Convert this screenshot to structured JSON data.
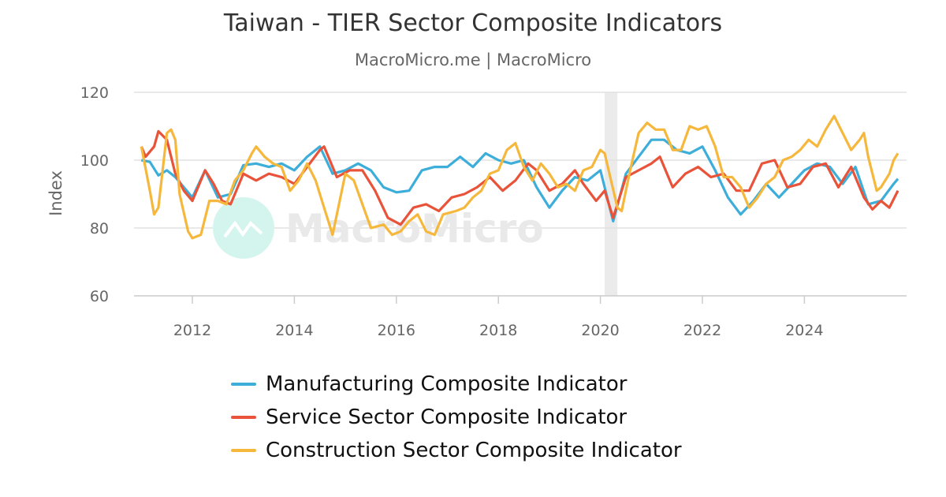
{
  "chart_data": {
    "type": "line",
    "title": "Taiwan - TIER Sector Composite Indicators",
    "subtitle": "MacroMicro.me | MacroMicro",
    "ylabel": "Index",
    "xlabel": "",
    "ylim": [
      60,
      120
    ],
    "yticks": [
      "60",
      "80",
      "100",
      "120"
    ],
    "xticks": [
      "2012",
      "2014",
      "2016",
      "2018",
      "2020",
      "2022",
      "2024"
    ],
    "grid": true,
    "legend": "bottom",
    "shaded_period": [
      "2020-02",
      "2020-05"
    ],
    "watermark": "MacroMicro",
    "series": [
      {
        "name": "Manufacturing Composite Indicator",
        "color": "#3caed9",
        "points": [
          [
            "2011-01",
            100
          ],
          [
            "2011-03",
            99.5
          ],
          [
            "2011-05",
            95.5
          ],
          [
            "2011-07",
            97
          ],
          [
            "2011-09",
            95
          ],
          [
            "2011-11",
            92
          ],
          [
            "2012-01",
            89
          ],
          [
            "2012-04",
            97
          ],
          [
            "2012-07",
            89
          ],
          [
            "2012-10",
            90
          ],
          [
            "2013-01",
            98.5
          ],
          [
            "2013-04",
            99
          ],
          [
            "2013-07",
            98
          ],
          [
            "2013-10",
            99
          ],
          [
            "2014-01",
            97
          ],
          [
            "2014-04",
            101
          ],
          [
            "2014-07",
            104
          ],
          [
            "2014-10",
            96
          ],
          [
            "2015-01",
            97
          ],
          [
            "2015-04",
            99
          ],
          [
            "2015-07",
            97
          ],
          [
            "2015-10",
            92
          ],
          [
            "2016-01",
            90.5
          ],
          [
            "2016-04",
            91
          ],
          [
            "2016-07",
            97
          ],
          [
            "2016-10",
            98
          ],
          [
            "2017-01",
            98
          ],
          [
            "2017-04",
            101
          ],
          [
            "2017-07",
            98
          ],
          [
            "2017-10",
            102
          ],
          [
            "2018-01",
            100
          ],
          [
            "2018-04",
            99
          ],
          [
            "2018-07",
            100
          ],
          [
            "2018-10",
            92
          ],
          [
            "2019-01",
            86
          ],
          [
            "2019-04",
            91
          ],
          [
            "2019-07",
            95
          ],
          [
            "2019-10",
            94
          ],
          [
            "2020-01",
            97
          ],
          [
            "2020-04",
            82
          ],
          [
            "2020-07",
            96
          ],
          [
            "2020-10",
            101
          ],
          [
            "2021-01",
            106
          ],
          [
            "2021-04",
            106
          ],
          [
            "2021-07",
            103
          ],
          [
            "2021-10",
            102
          ],
          [
            "2022-01",
            104
          ],
          [
            "2022-04",
            97
          ],
          [
            "2022-07",
            89
          ],
          [
            "2022-10",
            84
          ],
          [
            "2023-01",
            88
          ],
          [
            "2023-04",
            93
          ],
          [
            "2023-07",
            89
          ],
          [
            "2023-10",
            93
          ],
          [
            "2024-01",
            97
          ],
          [
            "2024-04",
            99
          ],
          [
            "2024-07",
            98
          ],
          [
            "2024-10",
            93
          ],
          [
            "2025-01",
            98
          ],
          [
            "2025-04",
            87
          ],
          [
            "2025-07",
            88
          ],
          [
            "2025-10",
            93
          ],
          [
            "2025-11",
            94.5
          ]
        ]
      },
      {
        "name": "Service Sector Composite Indicator",
        "color": "#e8533a",
        "points": [
          [
            "2011-01",
            104
          ],
          [
            "2011-02",
            101
          ],
          [
            "2011-04",
            104
          ],
          [
            "2011-05",
            108.5
          ],
          [
            "2011-07",
            106
          ],
          [
            "2011-09",
            96
          ],
          [
            "2011-11",
            91
          ],
          [
            "2012-01",
            88
          ],
          [
            "2012-04",
            97
          ],
          [
            "2012-06",
            93
          ],
          [
            "2012-08",
            88
          ],
          [
            "2012-10",
            87
          ],
          [
            "2013-01",
            96
          ],
          [
            "2013-04",
            94
          ],
          [
            "2013-07",
            96
          ],
          [
            "2013-10",
            95
          ],
          [
            "2014-01",
            93
          ],
          [
            "2014-04",
            98
          ],
          [
            "2014-07",
            103
          ],
          [
            "2014-08",
            104
          ],
          [
            "2014-11",
            95
          ],
          [
            "2015-02",
            97
          ],
          [
            "2015-05",
            97
          ],
          [
            "2015-08",
            91
          ],
          [
            "2015-11",
            83
          ],
          [
            "2016-02",
            81
          ],
          [
            "2016-05",
            86
          ],
          [
            "2016-08",
            87
          ],
          [
            "2016-11",
            85
          ],
          [
            "2017-02",
            89
          ],
          [
            "2017-05",
            90
          ],
          [
            "2017-08",
            92
          ],
          [
            "2017-11",
            95
          ],
          [
            "2018-02",
            91
          ],
          [
            "2018-05",
            94
          ],
          [
            "2018-08",
            99
          ],
          [
            "2018-10",
            97
          ],
          [
            "2019-01",
            91
          ],
          [
            "2019-04",
            93
          ],
          [
            "2019-07",
            97
          ],
          [
            "2019-09",
            93
          ],
          [
            "2019-12",
            88
          ],
          [
            "2020-02",
            91
          ],
          [
            "2020-04",
            83
          ],
          [
            "2020-07",
            95
          ],
          [
            "2020-10",
            97
          ],
          [
            "2021-01",
            99
          ],
          [
            "2021-03",
            101
          ],
          [
            "2021-06",
            92
          ],
          [
            "2021-09",
            96
          ],
          [
            "2021-12",
            98
          ],
          [
            "2022-03",
            95
          ],
          [
            "2022-06",
            96
          ],
          [
            "2022-09",
            91
          ],
          [
            "2022-12",
            91
          ],
          [
            "2023-03",
            99
          ],
          [
            "2023-06",
            100
          ],
          [
            "2023-09",
            92
          ],
          [
            "2023-12",
            93
          ],
          [
            "2024-03",
            98
          ],
          [
            "2024-06",
            99
          ],
          [
            "2024-09",
            92
          ],
          [
            "2024-12",
            98
          ],
          [
            "2025-03",
            89
          ],
          [
            "2025-05",
            85.5
          ],
          [
            "2025-07",
            88
          ],
          [
            "2025-09",
            86
          ],
          [
            "2025-11",
            91
          ]
        ]
      },
      {
        "name": "Construction Sector Composite Indicator",
        "color": "#f5b83d",
        "points": [
          [
            "2011-01",
            104
          ],
          [
            "2011-03",
            91
          ],
          [
            "2011-04",
            84
          ],
          [
            "2011-05",
            86
          ],
          [
            "2011-07",
            108
          ],
          [
            "2011-08",
            109
          ],
          [
            "2011-09",
            106
          ],
          [
            "2011-10",
            90
          ],
          [
            "2011-12",
            79
          ],
          [
            "2012-01",
            77
          ],
          [
            "2012-03",
            78
          ],
          [
            "2012-05",
            88
          ],
          [
            "2012-07",
            88
          ],
          [
            "2012-09",
            87
          ],
          [
            "2012-11",
            94
          ],
          [
            "2013-01",
            97
          ],
          [
            "2013-03",
            102
          ],
          [
            "2013-04",
            104
          ],
          [
            "2013-06",
            101
          ],
          [
            "2013-08",
            99
          ],
          [
            "2013-10",
            98
          ],
          [
            "2013-12",
            91
          ],
          [
            "2014-02",
            94
          ],
          [
            "2014-04",
            99
          ],
          [
            "2014-06",
            94
          ],
          [
            "2014-08",
            86
          ],
          [
            "2014-10",
            78
          ],
          [
            "2015-01",
            96
          ],
          [
            "2015-03",
            94
          ],
          [
            "2015-05",
            87
          ],
          [
            "2015-07",
            80
          ],
          [
            "2015-10",
            81
          ],
          [
            "2015-12",
            78
          ],
          [
            "2016-02",
            79
          ],
          [
            "2016-04",
            82
          ],
          [
            "2016-06",
            84
          ],
          [
            "2016-08",
            79
          ],
          [
            "2016-10",
            78
          ],
          [
            "2016-12",
            84
          ],
          [
            "2017-03",
            85
          ],
          [
            "2017-05",
            86
          ],
          [
            "2017-07",
            89
          ],
          [
            "2017-09",
            91
          ],
          [
            "2017-11",
            96
          ],
          [
            "2018-01",
            97
          ],
          [
            "2018-03",
            103
          ],
          [
            "2018-05",
            105
          ],
          [
            "2018-07",
            98
          ],
          [
            "2018-09",
            94
          ],
          [
            "2018-11",
            99
          ],
          [
            "2019-01",
            96
          ],
          [
            "2019-03",
            92
          ],
          [
            "2019-05",
            93
          ],
          [
            "2019-07",
            91
          ],
          [
            "2019-09",
            97
          ],
          [
            "2019-11",
            98
          ],
          [
            "2020-01",
            103
          ],
          [
            "2020-02",
            102
          ],
          [
            "2020-05",
            86
          ],
          [
            "2020-06",
            85
          ],
          [
            "2020-08",
            97
          ],
          [
            "2020-10",
            108
          ],
          [
            "2020-12",
            111
          ],
          [
            "2021-02",
            109
          ],
          [
            "2021-04",
            109
          ],
          [
            "2021-06",
            103
          ],
          [
            "2021-08",
            103
          ],
          [
            "2021-10",
            110
          ],
          [
            "2021-12",
            109
          ],
          [
            "2022-02",
            110
          ],
          [
            "2022-04",
            104
          ],
          [
            "2022-06",
            95
          ],
          [
            "2022-08",
            95
          ],
          [
            "2022-10",
            92
          ],
          [
            "2022-12",
            86
          ],
          [
            "2023-02",
            89
          ],
          [
            "2023-04",
            93
          ],
          [
            "2023-06",
            95
          ],
          [
            "2023-08",
            100
          ],
          [
            "2023-10",
            101
          ],
          [
            "2023-12",
            103
          ],
          [
            "2024-02",
            106
          ],
          [
            "2024-04",
            104
          ],
          [
            "2024-06",
            109
          ],
          [
            "2024-08",
            113
          ],
          [
            "2024-10",
            108
          ],
          [
            "2024-12",
            103
          ],
          [
            "2025-02",
            106
          ],
          [
            "2025-03",
            108
          ],
          [
            "2025-04",
            101
          ],
          [
            "2025-06",
            91
          ],
          [
            "2025-07",
            92
          ],
          [
            "2025-09",
            96
          ],
          [
            "2025-10",
            100
          ],
          [
            "2025-11",
            102
          ]
        ]
      }
    ]
  }
}
